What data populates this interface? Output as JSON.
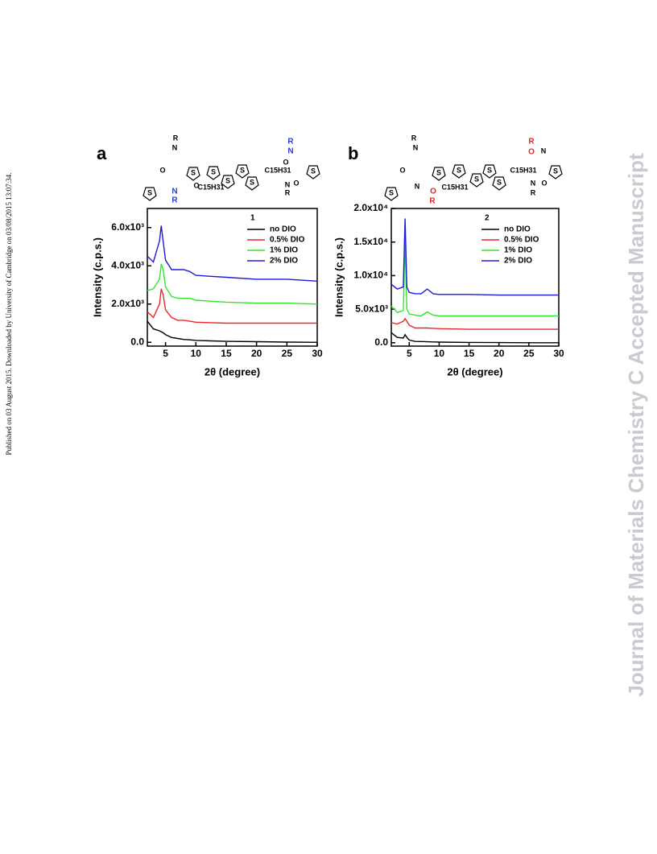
{
  "side_note": "Published on 03 August 2015. Downloaded by University of Cambridge on 03/08/2015 13:07:34.",
  "watermark": "Journal of Materials Chemistry C Accepted Manuscript",
  "chart_data": [
    {
      "type": "line",
      "panel": "a",
      "legend_title": "1",
      "structure_labels": [
        "R",
        "N",
        "O",
        "S",
        "N",
        "R",
        "O",
        "S",
        "S",
        "S",
        "S",
        "S",
        "C15H31",
        "C15H31",
        "O",
        "N",
        "R",
        "O",
        "R",
        "N",
        "S"
      ],
      "x_label": "2θ (degree)",
      "y_label": "Intensity (c.p.s.)",
      "xlim": [
        2,
        30
      ],
      "xticks": [
        5,
        10,
        15,
        20,
        25,
        30
      ],
      "ylim": [
        -200,
        7000
      ],
      "yticks": [
        {
          "value": 0,
          "label": "0.0"
        },
        {
          "value": 2000,
          "label": "2.0x10³"
        },
        {
          "value": 4000,
          "label": "4.0x10³"
        },
        {
          "value": 6000,
          "label": "6.0x10³"
        }
      ],
      "x": [
        2,
        3,
        4,
        4.3,
        4.6,
        5,
        6,
        7,
        8,
        9,
        10,
        15,
        20,
        25,
        30
      ],
      "series": [
        {
          "name": "no DIO",
          "color": "#000000",
          "values": [
            1100,
            700,
            600,
            550,
            500,
            400,
            250,
            200,
            150,
            130,
            100,
            50,
            30,
            10,
            0
          ]
        },
        {
          "name": "0.5% DIO",
          "color": "#e8262a",
          "values": [
            1600,
            1300,
            2000,
            2800,
            2500,
            1700,
            1300,
            1150,
            1150,
            1100,
            1050,
            1000,
            1000,
            1000,
            1000
          ]
        },
        {
          "name": "1% DIO",
          "color": "#2ee82a",
          "values": [
            2700,
            2800,
            3300,
            4100,
            3800,
            2900,
            2400,
            2300,
            2300,
            2300,
            2200,
            2100,
            2050,
            2050,
            2000
          ]
        },
        {
          "name": "2% DIO",
          "color": "#1a1adc",
          "values": [
            4500,
            4200,
            5300,
            6100,
            5300,
            4300,
            3800,
            3800,
            3800,
            3700,
            3500,
            3400,
            3300,
            3300,
            3200
          ]
        }
      ]
    },
    {
      "type": "line",
      "panel": "b",
      "legend_title": "2",
      "structure_labels": [
        "R",
        "N",
        "O",
        "S",
        "N",
        "O",
        "R",
        "C15H31",
        "S",
        "S",
        "S",
        "S",
        "S",
        "C15H31",
        "R",
        "O",
        "N",
        "S",
        "N",
        "R",
        "O"
      ],
      "x_label": "2θ (degree)",
      "y_label": "Intensity (c.p.s.)",
      "xlim": [
        2,
        30
      ],
      "xticks": [
        5,
        10,
        15,
        20,
        25,
        30
      ],
      "ylim": [
        -500,
        20000
      ],
      "yticks": [
        {
          "value": 0,
          "label": "0.0"
        },
        {
          "value": 5000,
          "label": "5.0x10³"
        },
        {
          "value": 10000,
          "label": "1.0x10⁴"
        },
        {
          "value": 15000,
          "label": "1.5x10⁴"
        },
        {
          "value": 20000,
          "label": "2.0x10⁴"
        }
      ],
      "x": [
        2,
        3,
        4,
        4.3,
        4.6,
        5,
        6,
        7,
        8,
        9,
        10,
        15,
        20,
        25,
        30
      ],
      "series": [
        {
          "name": "no DIO",
          "color": "#000000",
          "values": [
            1500,
            800,
            700,
            1200,
            800,
            400,
            200,
            180,
            150,
            120,
            100,
            50,
            30,
            0,
            0
          ]
        },
        {
          "name": "0.5% DIO",
          "color": "#e8262a",
          "values": [
            3000,
            2800,
            3200,
            3600,
            3200,
            2600,
            2200,
            2200,
            2200,
            2150,
            2100,
            2000,
            2000,
            2000,
            2000
          ]
        },
        {
          "name": "1% DIO",
          "color": "#2ee82a",
          "values": [
            5500,
            4500,
            4800,
            15000,
            5000,
            4300,
            4100,
            4000,
            4600,
            4100,
            4000,
            4000,
            4000,
            4000,
            4000
          ]
        },
        {
          "name": "2% DIO",
          "color": "#1a1adc",
          "values": [
            8700,
            8000,
            8300,
            18500,
            8300,
            7500,
            7300,
            7300,
            8000,
            7300,
            7200,
            7200,
            7100,
            7100,
            7100
          ]
        }
      ]
    }
  ]
}
